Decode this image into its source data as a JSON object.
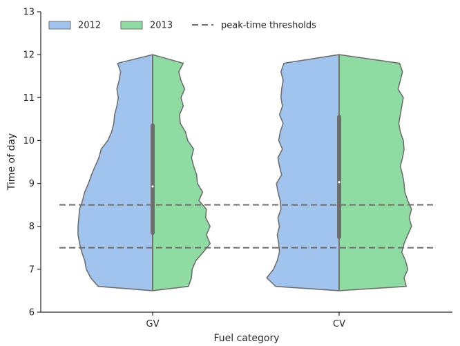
{
  "chart_data": {
    "type": "violin",
    "xlabel": "Fuel category",
    "ylabel": "Time of day",
    "categories": [
      "GV",
      "CV"
    ],
    "ylim": [
      6,
      13
    ],
    "yticks": [
      6,
      7,
      8,
      9,
      10,
      11,
      12,
      13
    ],
    "split_by": "year",
    "series": [
      {
        "name": "2012",
        "color": "#a1c4ee",
        "range": [
          6.5,
          12.0
        ]
      },
      {
        "name": "2013",
        "color": "#8fdca3",
        "range": [
          6.5,
          12.0
        ]
      }
    ],
    "violins": [
      {
        "category": "GV",
        "median": 8.93,
        "iqr": [
          7.85,
          10.35
        ],
        "density": {
          "y": [
            6.5,
            6.6,
            6.8,
            7.0,
            7.2,
            7.4,
            7.6,
            7.8,
            8.0,
            8.2,
            8.4,
            8.6,
            8.8,
            9.0,
            9.2,
            9.4,
            9.6,
            9.8,
            10.0,
            10.2,
            10.4,
            10.6,
            10.8,
            11.0,
            11.2,
            11.4,
            11.6,
            11.8,
            12.0
          ],
          "left": [
            0.0,
            0.73,
            0.83,
            0.89,
            0.91,
            0.95,
            0.98,
            1.0,
            1.0,
            0.99,
            0.98,
            0.94,
            0.91,
            0.86,
            0.82,
            0.77,
            0.72,
            0.69,
            0.6,
            0.55,
            0.52,
            0.51,
            0.48,
            0.46,
            0.48,
            0.45,
            0.43,
            0.47,
            0.0
          ],
          "right": [
            0.0,
            0.48,
            0.52,
            0.53,
            0.58,
            0.68,
            0.77,
            0.72,
            0.77,
            0.71,
            0.72,
            0.62,
            0.67,
            0.6,
            0.59,
            0.55,
            0.52,
            0.55,
            0.47,
            0.44,
            0.37,
            0.36,
            0.41,
            0.38,
            0.43,
            0.38,
            0.35,
            0.41,
            0.0
          ]
        }
      },
      {
        "category": "CV",
        "median": 9.03,
        "iqr": [
          7.75,
          10.55
        ],
        "density": {
          "y": [
            6.5,
            6.6,
            6.8,
            7.0,
            7.2,
            7.4,
            7.6,
            7.8,
            8.0,
            8.2,
            8.4,
            8.6,
            8.8,
            9.0,
            9.2,
            9.4,
            9.6,
            9.8,
            10.0,
            10.2,
            10.4,
            10.6,
            10.8,
            11.0,
            11.2,
            11.4,
            11.6,
            11.8,
            12.0
          ],
          "left": [
            0.0,
            0.85,
            0.97,
            0.88,
            0.83,
            0.8,
            0.81,
            0.83,
            0.8,
            0.82,
            0.78,
            0.79,
            0.82,
            0.84,
            0.77,
            0.8,
            0.82,
            0.76,
            0.81,
            0.79,
            0.75,
            0.8,
            0.76,
            0.78,
            0.77,
            0.75,
            0.78,
            0.74,
            0.0
          ],
          "right": [
            0.0,
            0.9,
            0.87,
            0.92,
            0.89,
            0.84,
            0.87,
            0.92,
            0.97,
            0.94,
            0.97,
            0.92,
            0.88,
            0.87,
            0.85,
            0.82,
            0.85,
            0.87,
            0.86,
            0.82,
            0.8,
            0.82,
            0.84,
            0.86,
            0.79,
            0.82,
            0.85,
            0.81,
            0.0
          ]
        }
      }
    ],
    "hlines": [
      {
        "name": "peak-time thresholds",
        "values": [
          7.5,
          8.5
        ],
        "color": "#6e6e6e"
      }
    ],
    "grid": false,
    "legend": {
      "placement": "top-left",
      "entries": [
        {
          "label": "2012",
          "kind": "patch",
          "color": "#a1c4ee"
        },
        {
          "label": "2013",
          "kind": "patch",
          "color": "#8fdca3"
        },
        {
          "label": "peak-time thresholds",
          "kind": "dashed-line",
          "color": "#6e6e6e"
        }
      ]
    }
  }
}
